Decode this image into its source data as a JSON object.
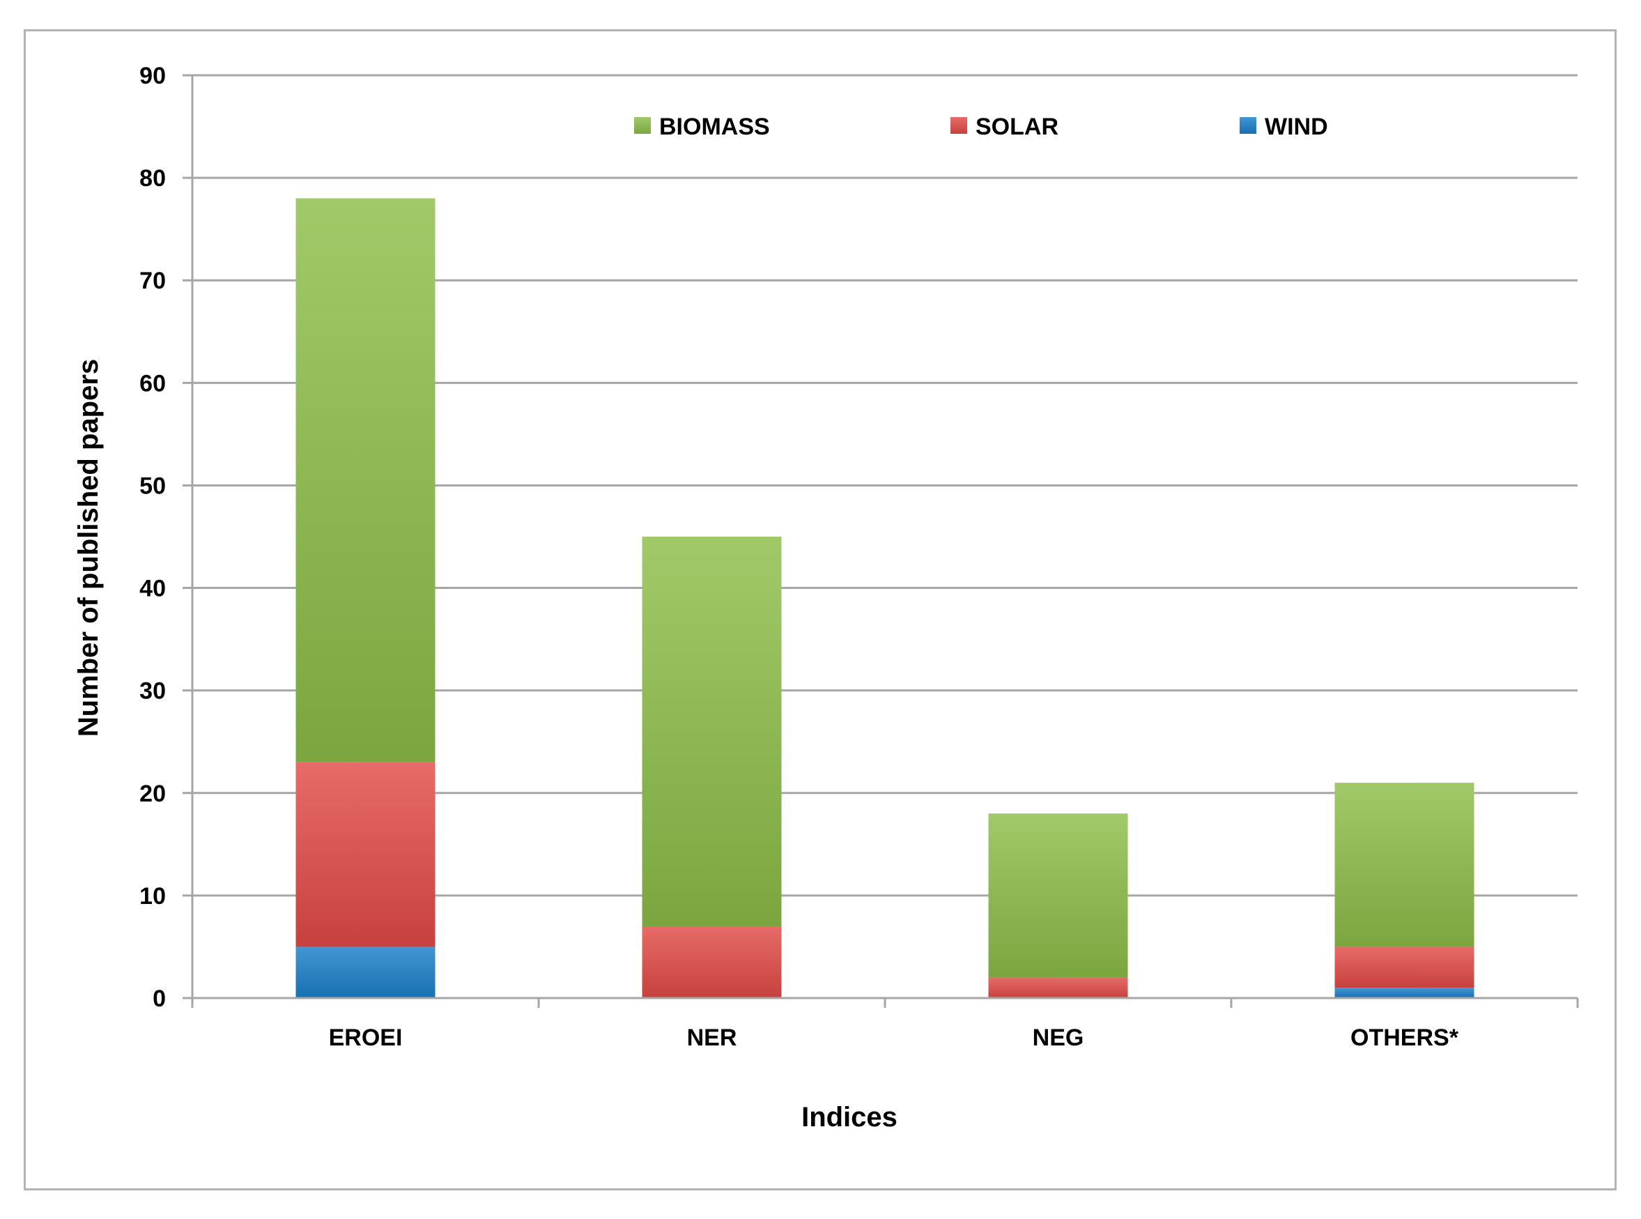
{
  "chart_data": {
    "type": "bar",
    "stacked": true,
    "categories": [
      "EROEI",
      "NER",
      "NEG",
      "OTHERS*"
    ],
    "series": [
      {
        "name": "WIND",
        "values": [
          5,
          0,
          0,
          1
        ],
        "color": "#1a7fc9"
      },
      {
        "name": "SOLAR",
        "values": [
          18,
          7,
          2,
          4
        ],
        "color": "#e24a47"
      },
      {
        "name": "BIOMASS",
        "values": [
          55,
          38,
          16,
          16
        ],
        "color": "#8cbd48"
      }
    ],
    "legend_order": [
      "BIOMASS",
      "SOLAR",
      "WIND"
    ],
    "title": "",
    "xlabel": "Indices",
    "ylabel": "Number of published papers",
    "ylim": [
      0,
      90
    ],
    "yticks": [
      0,
      10,
      20,
      30,
      40,
      50,
      60,
      70,
      80,
      90
    ],
    "grid": true,
    "legend_position": "top"
  }
}
